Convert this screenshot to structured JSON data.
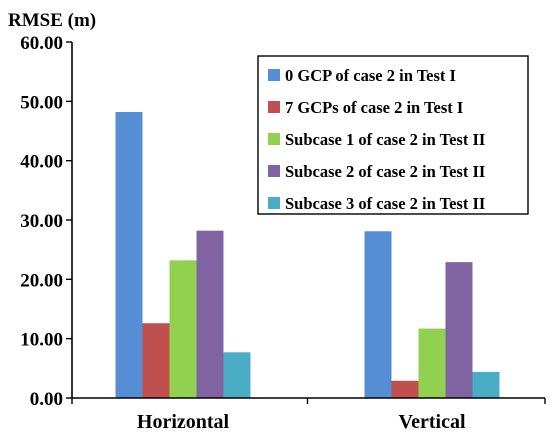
{
  "chart_data": {
    "type": "bar",
    "ylabel": "RMSE (m)",
    "xlabel": "",
    "ylim": [
      0,
      60
    ],
    "ytick_step": 10,
    "ytick_labels": [
      "0.00",
      "10.00",
      "20.00",
      "30.00",
      "40.00",
      "50.00",
      "60.00"
    ],
    "grid": false,
    "legend_position": "top-right",
    "categories": [
      "Horizontal",
      "Vertical"
    ],
    "series": [
      {
        "name": "0 GCP of case 2 in Test I",
        "color": "#558ED5",
        "values": [
          48.2,
          28.1
        ]
      },
      {
        "name": "7 GCPs of case 2 in Test I",
        "color": "#C0504D",
        "values": [
          12.6,
          2.9
        ]
      },
      {
        "name": "Subcase 1 of case 2 in Test II",
        "color": "#92D050",
        "values": [
          23.2,
          11.7
        ]
      },
      {
        "name": "Subcase 2 of case 2 in Test II",
        "color": "#8064A2",
        "values": [
          28.2,
          22.9
        ]
      },
      {
        "name": "Subcase 3 of case 2 in Test II",
        "color": "#4BACC6",
        "values": [
          7.7,
          4.4
        ]
      }
    ]
  }
}
